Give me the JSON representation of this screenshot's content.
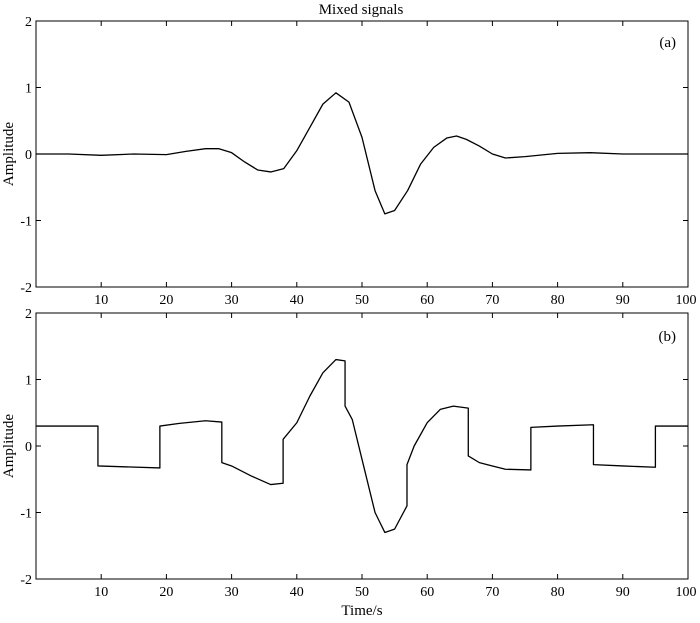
{
  "chart_data": [
    {
      "type": "line",
      "title": "Mixed signals",
      "panel_label": "(a)",
      "xlabel": "",
      "ylabel": "Amplitude",
      "xlim": [
        0,
        100
      ],
      "ylim": [
        -2,
        2
      ],
      "xticks": [
        10,
        20,
        30,
        40,
        50,
        60,
        70,
        80,
        90,
        100
      ],
      "yticks": [
        -2,
        -1,
        0,
        1,
        2
      ],
      "grid": false,
      "series": [
        {
          "color": "#000000",
          "x": [
            0,
            5,
            10,
            15,
            20,
            23,
            26,
            28,
            30,
            32,
            34,
            36,
            38,
            40,
            42,
            44,
            46,
            48,
            50,
            52,
            53.5,
            55,
            57,
            59,
            61,
            63,
            64.5,
            66,
            68,
            70,
            72,
            75,
            80,
            85,
            90,
            95,
            100
          ],
          "values": [
            0.0,
            0.0,
            -0.02,
            0.0,
            -0.01,
            0.04,
            0.08,
            0.08,
            0.02,
            -0.12,
            -0.24,
            -0.27,
            -0.22,
            0.05,
            0.4,
            0.75,
            0.92,
            0.78,
            0.25,
            -0.55,
            -0.9,
            -0.85,
            -0.55,
            -0.15,
            0.1,
            0.24,
            0.27,
            0.22,
            0.12,
            0.0,
            -0.06,
            -0.04,
            0.01,
            0.02,
            0.0,
            0.0,
            0.0
          ]
        }
      ]
    },
    {
      "type": "line",
      "title": "",
      "panel_label": "(b)",
      "xlabel": "Time/s",
      "ylabel": "Amplitude",
      "xlim": [
        0,
        100
      ],
      "ylim": [
        -2,
        2
      ],
      "xticks": [
        10,
        20,
        30,
        40,
        50,
        60,
        70,
        80,
        90,
        100
      ],
      "yticks": [
        -2,
        -1,
        0,
        1,
        2
      ],
      "grid": false,
      "series": [
        {
          "color": "#000000",
          "x": [
            0,
            9.5,
            9.5,
            19,
            19,
            22,
            26,
            28.5,
            28.5,
            30,
            33,
            36,
            37.9,
            37.9,
            40,
            42,
            44,
            46,
            47.4,
            47.4,
            48.5,
            50,
            52,
            53.5,
            55,
            56.9,
            56.9,
            58,
            60,
            62,
            64,
            66.3,
            66.3,
            68,
            70,
            72,
            75.9,
            75.9,
            80,
            85.5,
            85.5,
            90,
            95,
            95,
            100
          ],
          "values": [
            0.3,
            0.3,
            -0.3,
            -0.33,
            0.3,
            0.34,
            0.38,
            0.36,
            -0.25,
            -0.3,
            -0.45,
            -0.58,
            -0.56,
            0.1,
            0.35,
            0.75,
            1.1,
            1.3,
            1.28,
            0.6,
            0.4,
            -0.2,
            -1.0,
            -1.3,
            -1.25,
            -0.9,
            -0.28,
            0.0,
            0.35,
            0.55,
            0.6,
            0.57,
            -0.15,
            -0.25,
            -0.3,
            -0.35,
            -0.36,
            0.28,
            0.3,
            0.32,
            -0.28,
            -0.3,
            -0.32,
            0.3,
            0.3
          ]
        }
      ]
    }
  ]
}
